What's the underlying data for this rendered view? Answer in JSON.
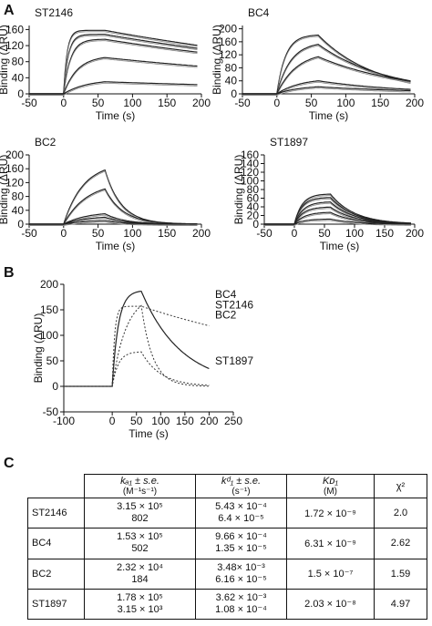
{
  "panels": {
    "a": "A",
    "b": "B",
    "c": "C"
  },
  "chart_data": [
    {
      "type": "line",
      "title": "ST2146",
      "xlabel": "Time (s)",
      "ylabel": "Binding (ΔRU)",
      "xlim": [
        -50,
        200
      ],
      "ylim": [
        0,
        170
      ],
      "xticks": [
        -50,
        0,
        50,
        100,
        150,
        200
      ],
      "yticks": [
        0,
        40,
        80,
        120,
        160
      ],
      "series": [
        {
          "plateau": 158,
          "ka": 0.2,
          "kd": 0.0002
        },
        {
          "plateau": 148,
          "ka": 0.15,
          "kd": 0.0002
        },
        {
          "plateau": 136,
          "ka": 0.1,
          "kd": 0.0002
        },
        {
          "plateau": 95,
          "ka": 0.05,
          "kd": 0.0002
        },
        {
          "plateau": 36,
          "ka": 0.03,
          "kd": 0.0002
        }
      ]
    },
    {
      "type": "line",
      "title": "BC4",
      "xlabel": "Time (s)",
      "ylabel": "Binding (ΔRU)",
      "xlim": [
        -50,
        200
      ],
      "ylim": [
        0,
        210
      ],
      "xticks": [
        -50,
        0,
        50,
        100,
        150,
        200
      ],
      "yticks": [
        0,
        40,
        80,
        120,
        160,
        200
      ],
      "series": [
        {
          "plateau": 182,
          "ka": 0.08,
          "kd": 0.0012
        },
        {
          "plateau": 160,
          "ka": 0.05,
          "kd": 0.001
        },
        {
          "plateau": 130,
          "ka": 0.035,
          "kd": 0.0008
        },
        {
          "plateau": 48,
          "ka": 0.03,
          "kd": 0.0008
        },
        {
          "plateau": 26,
          "ka": 0.03,
          "kd": 0.0006
        }
      ]
    },
    {
      "type": "line",
      "title": "BC2",
      "xlabel": "Time (s)",
      "ylabel": "Binding (ΔRU)",
      "xlim": [
        -50,
        200
      ],
      "ylim": [
        0,
        200
      ],
      "xticks": [
        -50,
        0,
        50,
        100,
        150,
        200
      ],
      "yticks": [
        0,
        40,
        80,
        120,
        160,
        200
      ],
      "series": [
        {
          "plateau": 178,
          "ka": 0.035,
          "kd": 0.0042
        },
        {
          "plateau": 122,
          "ka": 0.03,
          "kd": 0.0038
        },
        {
          "plateau": 36,
          "ka": 0.03,
          "kd": 0.0035
        },
        {
          "plateau": 24,
          "ka": 0.03,
          "kd": 0.0035
        },
        {
          "plateau": 12,
          "ka": 0.03,
          "kd": 0.0035
        }
      ]
    },
    {
      "type": "line",
      "title": "ST1897",
      "xlabel": "Time (s)",
      "ylabel": "Binding (ΔRU)",
      "xlim": [
        -50,
        200
      ],
      "ylim": [
        0,
        160
      ],
      "xticks": [
        -50,
        0,
        50,
        100,
        150,
        200
      ],
      "yticks": [
        0,
        20,
        40,
        60,
        80,
        100,
        120,
        140,
        160
      ],
      "series": [
        {
          "plateau": 70,
          "ka": 0.08,
          "kd": 0.0025
        },
        {
          "plateau": 62,
          "ka": 0.08,
          "kd": 0.0025
        },
        {
          "plateau": 52,
          "ka": 0.07,
          "kd": 0.0025
        },
        {
          "plateau": 40,
          "ka": 0.07,
          "kd": 0.0025
        },
        {
          "plateau": 28,
          "ka": 0.06,
          "kd": 0.0025
        },
        {
          "plateau": 12,
          "ka": 0.06,
          "kd": 0.0025
        }
      ]
    },
    {
      "type": "line",
      "xlabel": "Time (s)",
      "ylabel": "Binding (ΔRU)",
      "xlim": [
        -100,
        250
      ],
      "ylim": [
        -50,
        200
      ],
      "xticks": [
        -100,
        0,
        50,
        100,
        150,
        200,
        250
      ],
      "yticks": [
        -50,
        0,
        50,
        100,
        150,
        200
      ],
      "series": [
        {
          "name": "BC4",
          "plateau": 188,
          "ka": 0.08,
          "kd": 0.0012,
          "style": "solid"
        },
        {
          "name": "ST2146",
          "plateau": 157,
          "ka": 0.2,
          "kd": 0.0002,
          "style": "dash"
        },
        {
          "name": "BC2",
          "plateau": 180,
          "ka": 0.035,
          "kd": 0.0042,
          "style": "dash"
        },
        {
          "name": "ST1897",
          "plateau": 68,
          "ka": 0.08,
          "kd": 0.0025,
          "style": "dash"
        }
      ]
    }
  ],
  "table": {
    "headers": [
      {
        "l1": "kₐ₁ ± s.e.",
        "l2": "(M⁻¹s⁻¹)"
      },
      {
        "l1": "kᵈ₁ ± s.e.",
        "l2": "(s⁻¹)"
      },
      {
        "l1": "Kᴅ₁",
        "l2": "(M)"
      },
      {
        "l1": "χ²",
        "l2": ""
      }
    ],
    "rows": [
      {
        "name": "ST2146",
        "ka": "3.15 × 10⁵",
        "ka_se": "802",
        "kd": "5.43 × 10⁻⁴",
        "kd_se": "6.4 × 10⁻⁵",
        "KD": "1.72 × 10⁻⁹",
        "chi2": "2.0"
      },
      {
        "name": "BC4",
        "ka": "1.53 × 10⁵",
        "ka_se": "502",
        "kd": "9.66 × 10⁻⁴",
        "kd_se": "1.35 × 10⁻⁵",
        "KD": "6.31 × 10⁻⁹",
        "chi2": "2.62"
      },
      {
        "name": "BC2",
        "ka": "2.32 × 10⁴",
        "ka_se": "184",
        "kd": "3.48× 10⁻³",
        "kd_se": "6.16 × 10⁻⁵",
        "KD": "1.5 × 10⁻⁷",
        "chi2": "1.59"
      },
      {
        "name": "ST1897",
        "ka": "1.78 × 10⁵",
        "ka_se": "3.15 × 10³",
        "kd": "3.62 × 10⁻³",
        "kd_se": "1.08 × 10⁻⁴",
        "KD": "2.03 × 10⁻⁸",
        "chi2": "4.97"
      }
    ]
  }
}
